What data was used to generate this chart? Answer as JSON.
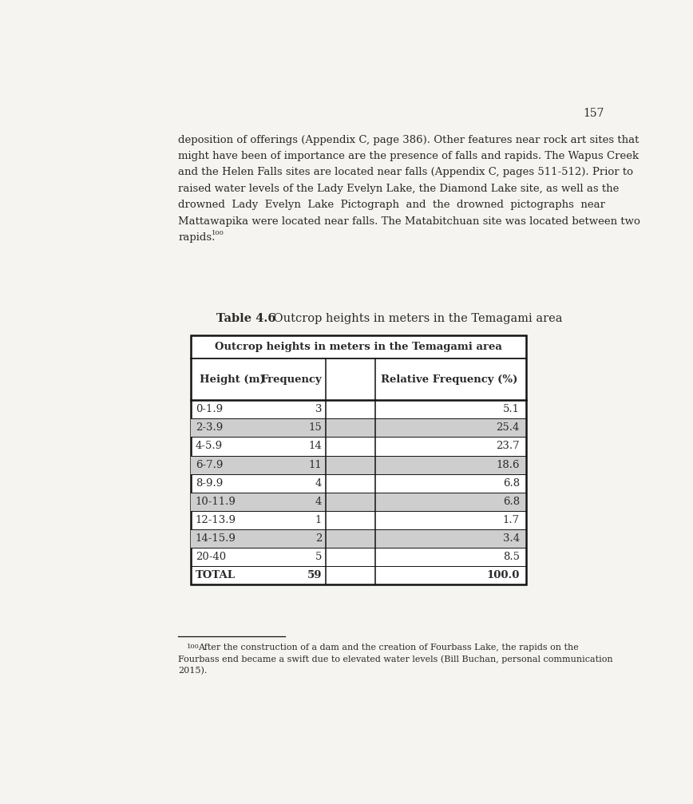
{
  "page_number": "157",
  "body_text_lines": [
    "deposition of offerings (Appendix C, page 386). Other features near rock art sites that",
    "might have been of importance are the presence of falls and rapids. The Wapus Creek",
    "and the Helen Falls sites are located near falls (Appendix C, pages 511-512). Prior to",
    "raised water levels of the Lady Evelyn Lake, the Diamond Lake site, as well as the",
    "drowned  Lady  Evelyn  Lake  Pictograph  and  the  drowned  pictographs  near",
    "Mattawapika were located near falls. The Matabitchuan site was located between two",
    "rapids."
  ],
  "table_caption_bold": "Table 4.6",
  "table_caption_rest": "    Outcrop heights in meters in the Temagami area",
  "table_header_title": "Outcrop heights in meters in the Temagami area",
  "col_headers": [
    "Height (m)",
    "Frequency",
    "Relative Frequency (%)"
  ],
  "rows": [
    [
      "0-1.9",
      "3",
      "5.1"
    ],
    [
      "2-3.9",
      "15",
      "25.4"
    ],
    [
      "4-5.9",
      "14",
      "23.7"
    ],
    [
      "6-7.9",
      "11",
      "18.6"
    ],
    [
      "8-9.9",
      "4",
      "6.8"
    ],
    [
      "10-11.9",
      "4",
      "6.8"
    ],
    [
      "12-13.9",
      "1",
      "1.7"
    ],
    [
      "14-15.9",
      "2",
      "3.4"
    ],
    [
      "20-40",
      "5",
      "8.5"
    ],
    [
      "TOTAL",
      "59",
      "100.0"
    ]
  ],
  "shaded_rows": [
    1,
    3,
    5,
    7
  ],
  "shade_color": "#cecece",
  "footnote_superscript": "100",
  "footnote_line1": "After the construction of a dam and the creation of Fourbass Lake, the rapids on the",
  "footnote_line2": "Fourbass end became a swift due to elevated water levels (Bill Buchan, personal communication",
  "footnote_line3": "2015).",
  "bg_color": "#f5f4f1",
  "text_color": "#2a2a2a"
}
